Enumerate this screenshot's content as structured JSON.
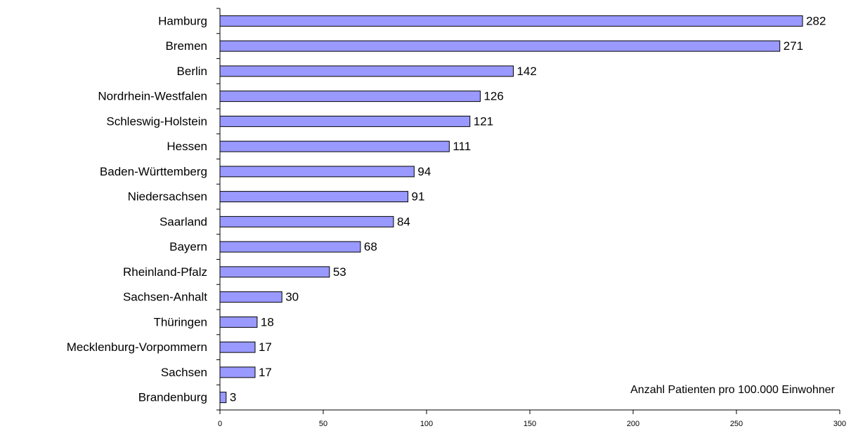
{
  "chart_data": {
    "type": "barh",
    "categories": [
      "Hamburg",
      "Bremen",
      "Berlin",
      "Nordrhein-Westfalen",
      "Schleswig-Holstein",
      "Hessen",
      "Baden-Württemberg",
      "Niedersachsen",
      "Saarland",
      "Bayern",
      "Rheinland-Pfalz",
      "Sachsen-Anhalt",
      "Thüringen",
      "Mecklenburg-Vorpommern",
      "Sachsen",
      "Brandenburg"
    ],
    "values": [
      282,
      271,
      142,
      126,
      121,
      111,
      94,
      91,
      84,
      68,
      53,
      30,
      18,
      17,
      17,
      3
    ],
    "color": "#9999ff",
    "xlim": [
      0,
      300
    ],
    "xticks": [
      0,
      50,
      100,
      150,
      200,
      250,
      300
    ],
    "annotation": "Anzahl Patienten pro 100.000 Einwohner",
    "grid": false
  }
}
